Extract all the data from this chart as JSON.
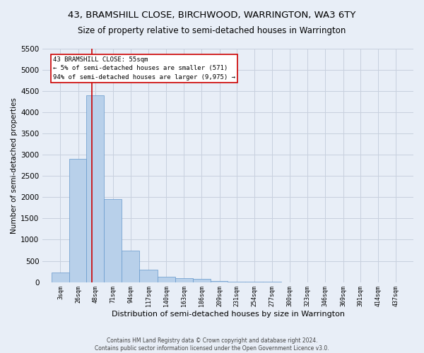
{
  "title": "43, BRAMSHILL CLOSE, BIRCHWOOD, WARRINGTON, WA3 6TY",
  "subtitle": "Size of property relative to semi-detached houses in Warrington",
  "xlabel": "Distribution of semi-detached houses by size in Warrington",
  "ylabel": "Number of semi-detached properties",
  "footer_line1": "Contains HM Land Registry data © Crown copyright and database right 2024.",
  "footer_line2": "Contains public sector information licensed under the Open Government Licence v3.0.",
  "bar_edges": [
    3,
    26,
    48,
    71,
    94,
    117,
    140,
    163,
    186,
    209,
    231,
    254,
    277,
    300,
    323,
    346,
    369,
    391,
    414,
    437,
    460
  ],
  "bar_heights": [
    220,
    2900,
    4400,
    1950,
    750,
    300,
    130,
    100,
    70,
    30,
    10,
    5,
    2,
    1,
    0,
    0,
    0,
    0,
    0,
    0
  ],
  "bar_color": "#b8d0ea",
  "bar_edgecolor": "#6699cc",
  "property_size": 55,
  "property_line_color": "#cc0000",
  "annotation_text_line1": "43 BRAMSHILL CLOSE: 55sqm",
  "annotation_text_line2": "← 5% of semi-detached houses are smaller (571)",
  "annotation_text_line3": "94% of semi-detached houses are larger (9,975) →",
  "annotation_box_color": "#cc0000",
  "annotation_fill_color": "#ffffff",
  "bg_color": "#e8eef7",
  "grid_color": "#c8d0de",
  "ylim": [
    0,
    5500
  ],
  "yticks": [
    0,
    500,
    1000,
    1500,
    2000,
    2500,
    3000,
    3500,
    4000,
    4500,
    5000,
    5500
  ],
  "title_fontsize": 9.5,
  "subtitle_fontsize": 8.5
}
